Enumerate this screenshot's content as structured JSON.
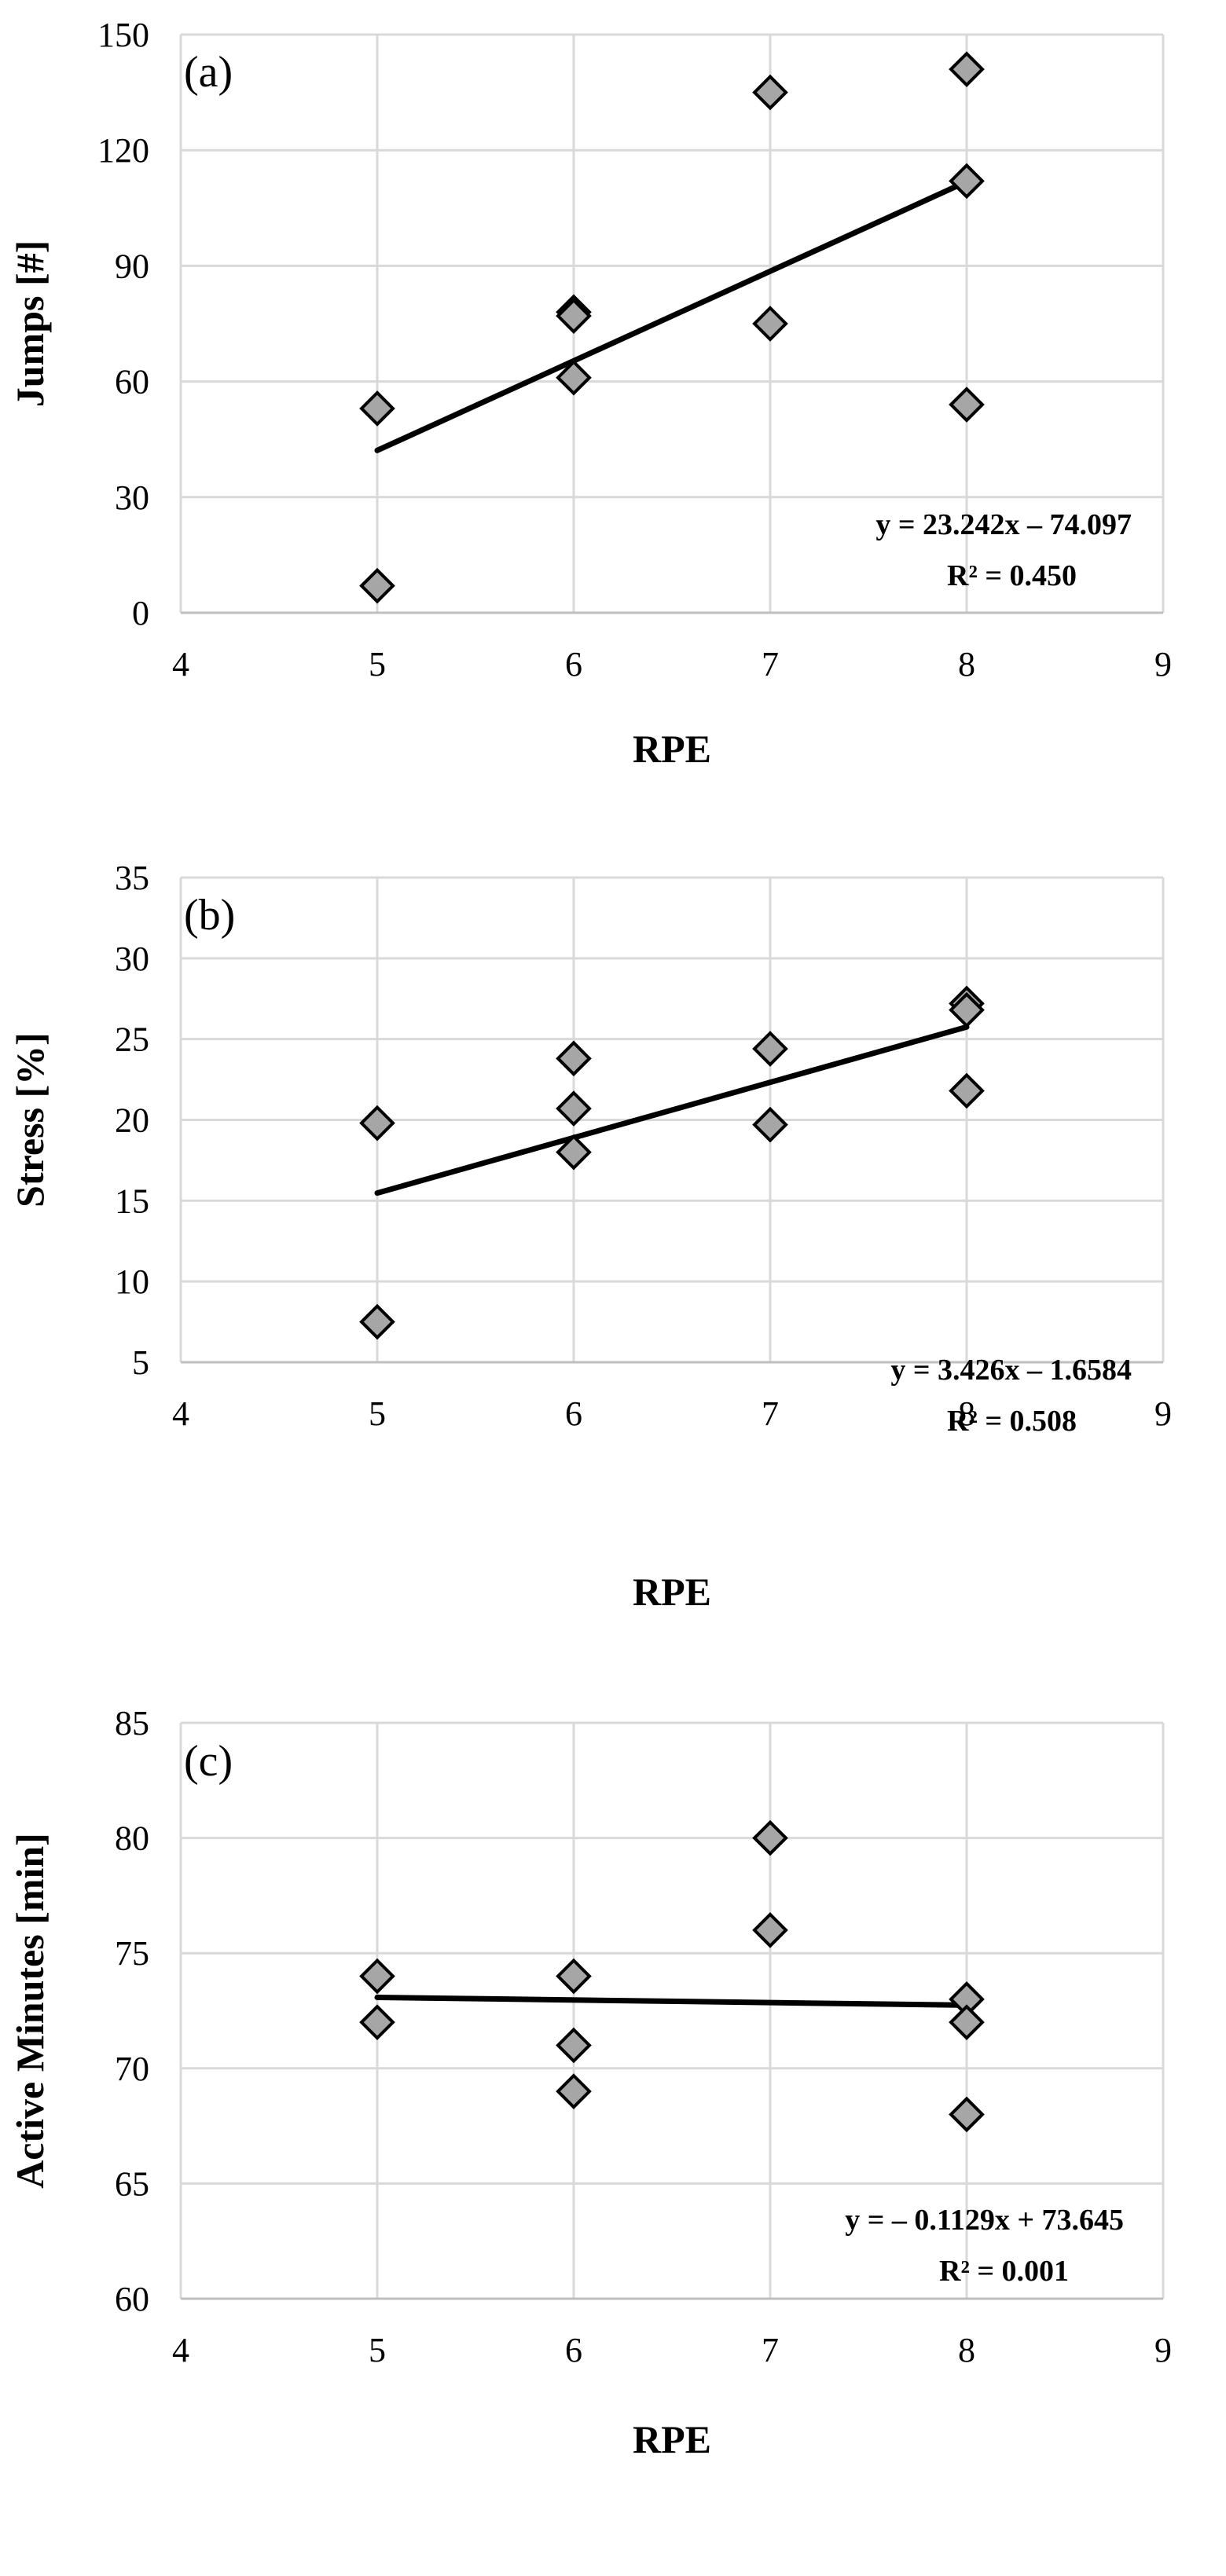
{
  "colors": {
    "marker_fill": "#a6a6a6",
    "marker_edge": "#000000",
    "trendline": "#000000",
    "gridline": "#d9d9d9"
  },
  "chart_data": [
    {
      "id": "a",
      "type": "scatter",
      "panel_label": "(a)",
      "xlabel": "RPE",
      "ylabel": "Jumps [#]",
      "xlim": [
        4,
        9
      ],
      "ylim": [
        0,
        150
      ],
      "xticks": [
        4,
        5,
        6,
        7,
        8,
        9
      ],
      "yticks": [
        0,
        30,
        60,
        90,
        120,
        150
      ],
      "grid": true,
      "marker": "diamond",
      "series": [
        {
          "name": "Jumps",
          "x": [
            5,
            5,
            6,
            6,
            6,
            7,
            7,
            8,
            8,
            8
          ],
          "y": [
            53,
            7,
            78,
            77,
            61,
            135,
            75,
            141,
            112,
            54
          ]
        }
      ],
      "trendline": {
        "slope": 23.242,
        "intercept": -74.097,
        "x_range": [
          5,
          8
        ]
      },
      "equation": "y = 23.242x – 74.097",
      "r_squared": "R² = 0.450"
    },
    {
      "id": "b",
      "type": "scatter",
      "panel_label": "(b)",
      "xlabel": "RPE",
      "ylabel": "Stress [%]",
      "xlim": [
        4,
        9
      ],
      "ylim": [
        5,
        35
      ],
      "xticks": [
        4,
        5,
        6,
        7,
        8,
        9
      ],
      "yticks": [
        5,
        10,
        15,
        20,
        25,
        30,
        35
      ],
      "grid": true,
      "marker": "diamond",
      "series": [
        {
          "name": "Stress",
          "x": [
            5,
            5,
            6,
            6,
            6,
            7,
            7,
            8,
            8,
            8
          ],
          "y": [
            19.8,
            7.5,
            23.8,
            20.7,
            18.0,
            24.4,
            19.7,
            27.2,
            26.8,
            21.8
          ]
        }
      ],
      "trendline": {
        "slope": 3.426,
        "intercept": -1.6584,
        "x_range": [
          5,
          8
        ]
      },
      "equation": "y = 3.426x – 1.6584",
      "r_squared": "R² = 0.508"
    },
    {
      "id": "c",
      "type": "scatter",
      "panel_label": "(c)",
      "xlabel": "RPE",
      "ylabel": "Active Minutes [min]",
      "xlim": [
        4,
        9
      ],
      "ylim": [
        60,
        85
      ],
      "xticks": [
        4,
        5,
        6,
        7,
        8,
        9
      ],
      "yticks": [
        60,
        65,
        70,
        75,
        80,
        85
      ],
      "grid": true,
      "marker": "diamond",
      "series": [
        {
          "name": "Active Minutes",
          "x": [
            5,
            5,
            6,
            6,
            6,
            7,
            7,
            8,
            8,
            8
          ],
          "y": [
            74,
            72,
            74,
            71,
            69,
            80,
            76,
            73,
            72,
            68
          ]
        }
      ],
      "trendline": {
        "slope": -0.1129,
        "intercept": 73.645,
        "x_range": [
          5,
          8
        ]
      },
      "equation": "y = – 0.1129x + 73.645",
      "r_squared": "R² = 0.001"
    }
  ]
}
